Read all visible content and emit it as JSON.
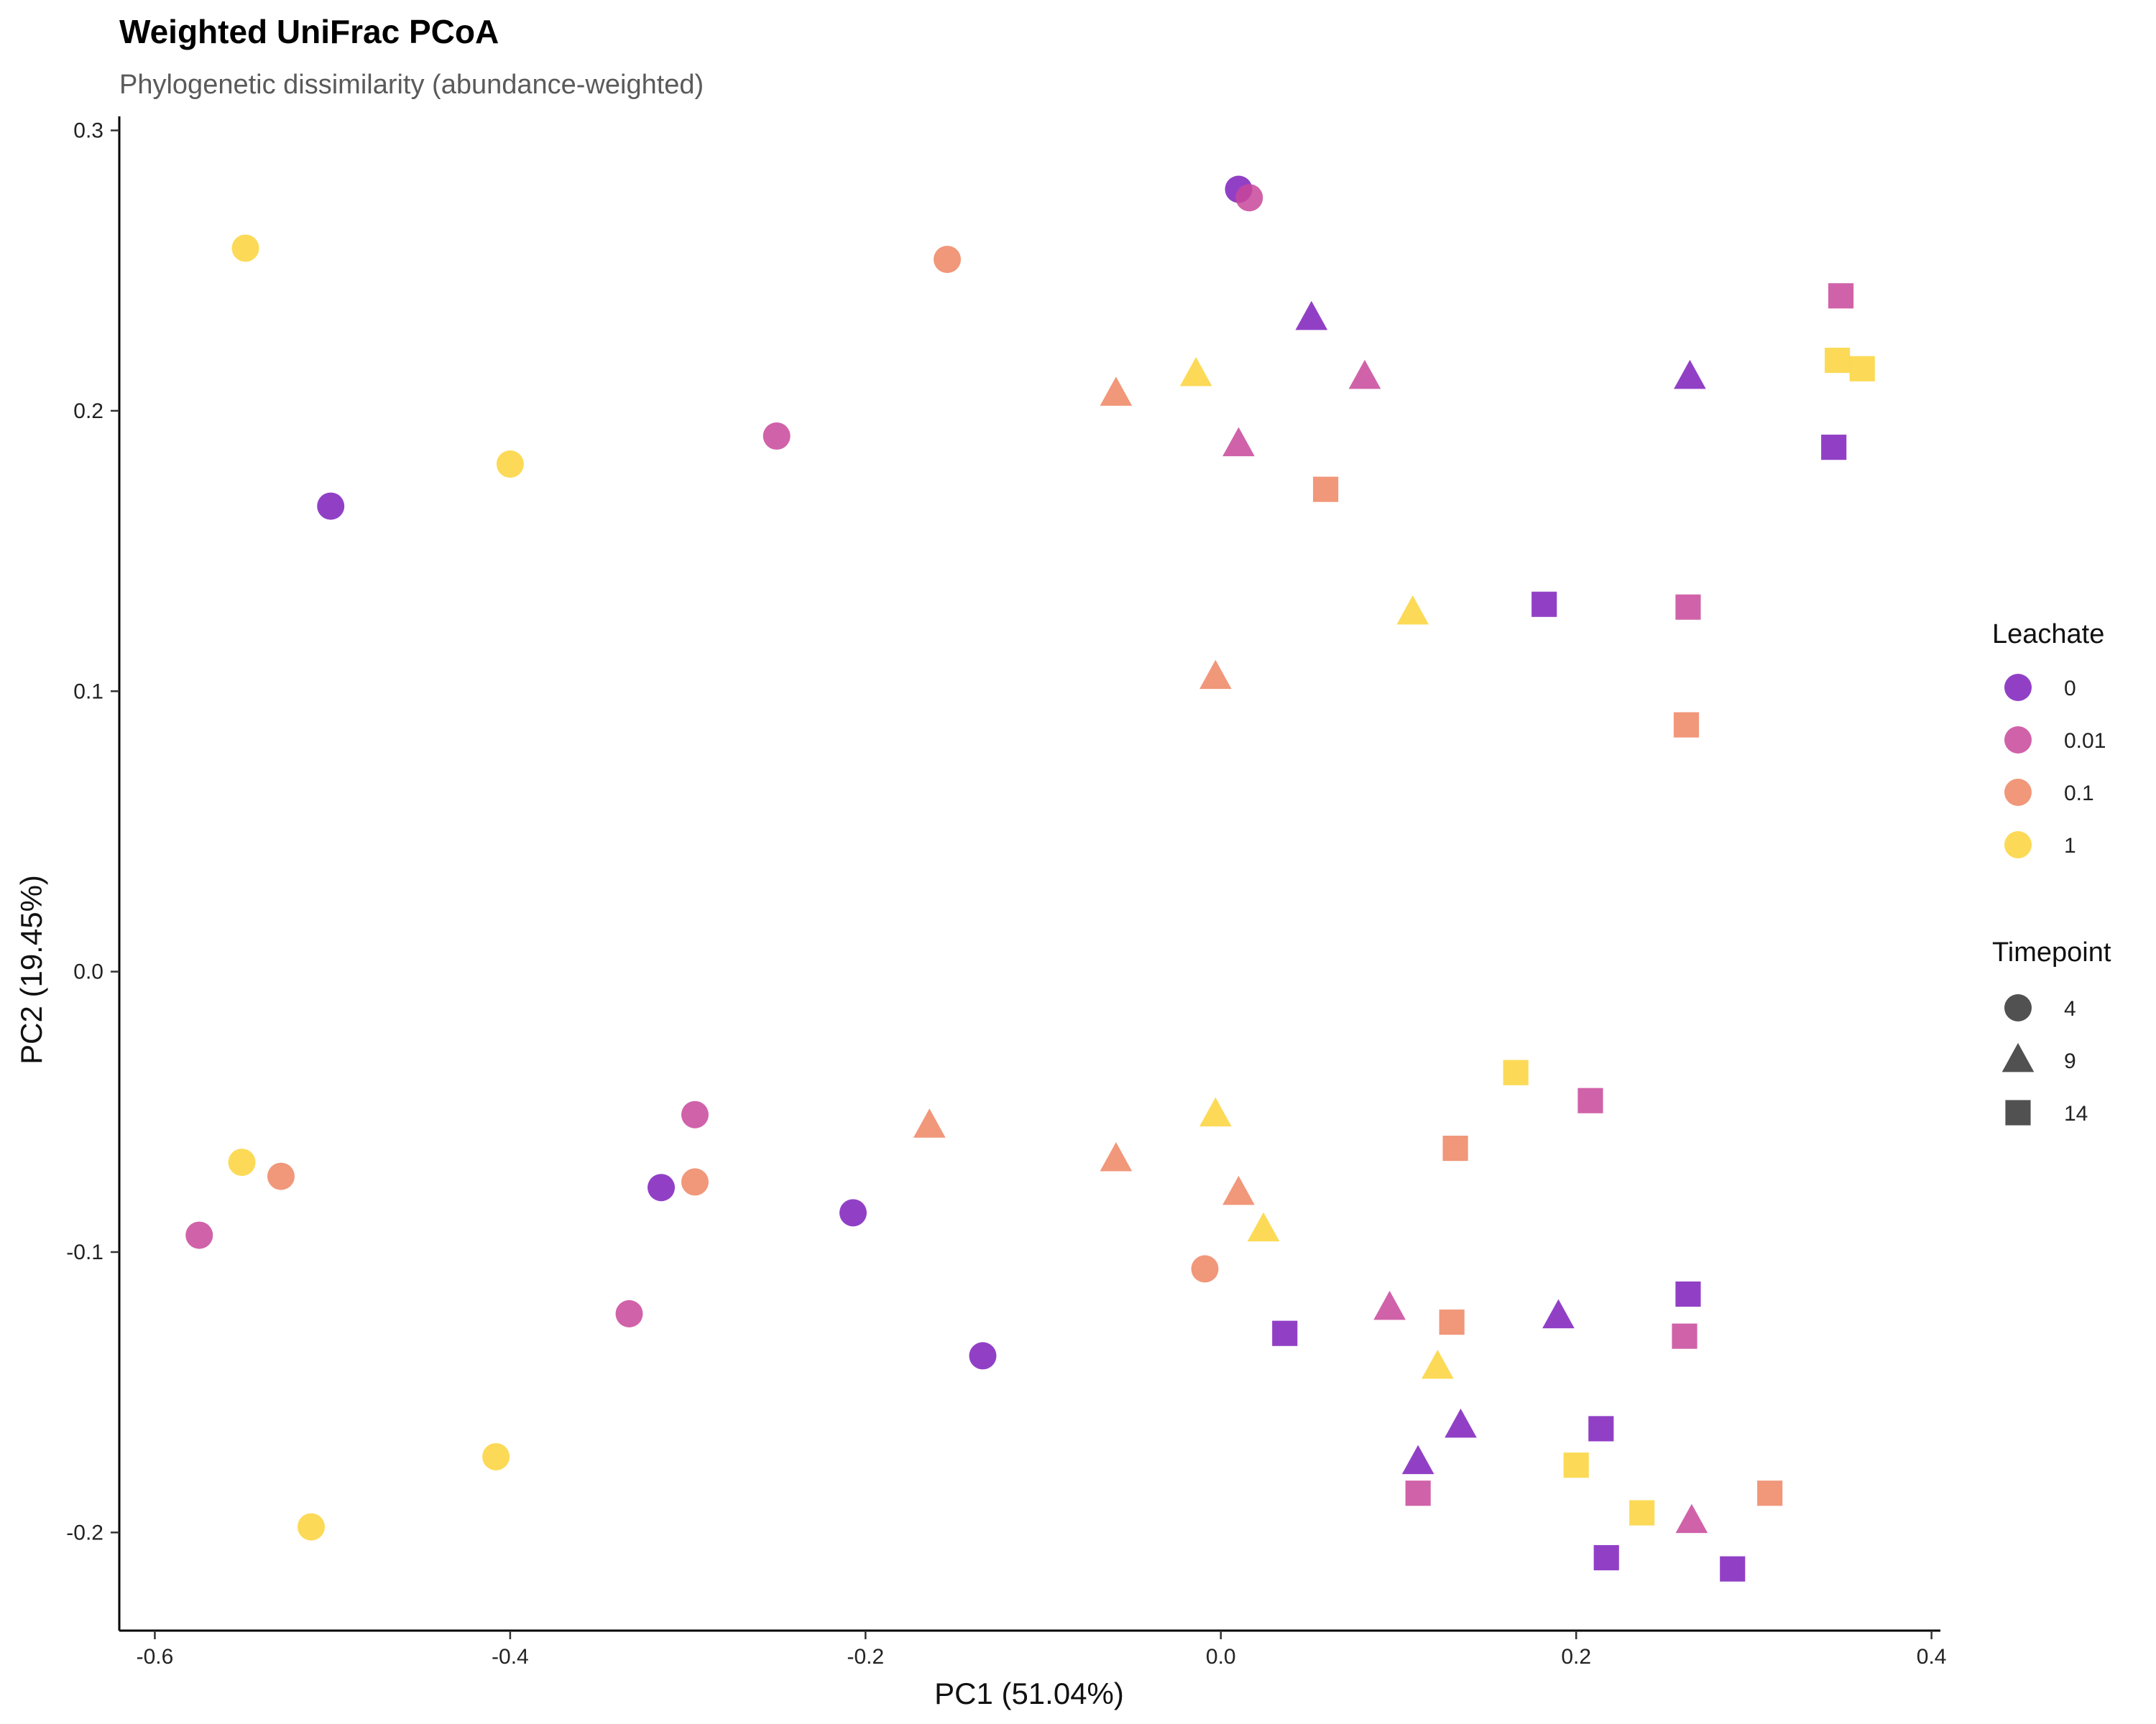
{
  "chart_data": {
    "type": "scatter",
    "title": "Weighted UniFrac PCoA",
    "subtitle": "Phylogenetic dissimilarity (abundance-weighted)",
    "xlabel": "PC1 (51.04%)",
    "ylabel": "PC2 (19.45%)",
    "xlim": [
      -0.62,
      0.405
    ],
    "ylim": [
      -0.235,
      0.305
    ],
    "xticks": [
      -0.6,
      -0.4,
      -0.2,
      0.0,
      0.2,
      0.4
    ],
    "xtick_labels": [
      "-0.6",
      "-0.4",
      "-0.2",
      "0.0",
      "0.2",
      "0.4"
    ],
    "yticks": [
      -0.2,
      -0.1,
      0.0,
      0.1,
      0.2,
      0.3
    ],
    "ytick_labels": [
      "-0.2",
      "-0.1",
      "0.0",
      "0.1",
      "0.2",
      "0.3"
    ],
    "grid": false,
    "legend_position": "right",
    "color_legend": {
      "title": "Leachate",
      "entries": [
        {
          "label": "0",
          "color": "#7E1FBC"
        },
        {
          "label": "0.01",
          "color": "#C8479A"
        },
        {
          "label": "0.1",
          "color": "#EE8563"
        },
        {
          "label": "1",
          "color": "#FCD43A"
        }
      ]
    },
    "shape_legend": {
      "title": "Timepoint",
      "entries": [
        {
          "label": "4",
          "shape": "circle"
        },
        {
          "label": "9",
          "shape": "triangle"
        },
        {
          "label": "14",
          "shape": "square"
        }
      ]
    },
    "points": [
      {
        "x": -0.549,
        "y": 0.258,
        "leachate": "1",
        "timepoint": "4"
      },
      {
        "x": -0.4,
        "y": 0.181,
        "leachate": "1",
        "timepoint": "4"
      },
      {
        "x": -0.501,
        "y": 0.166,
        "leachate": "0",
        "timepoint": "4"
      },
      {
        "x": -0.154,
        "y": 0.254,
        "leachate": "0.1",
        "timepoint": "4"
      },
      {
        "x": -0.25,
        "y": 0.191,
        "leachate": "0.01",
        "timepoint": "4"
      },
      {
        "x": 0.01,
        "y": 0.279,
        "leachate": "0",
        "timepoint": "4"
      },
      {
        "x": 0.016,
        "y": 0.276,
        "leachate": "0.01",
        "timepoint": "4"
      },
      {
        "x": -0.551,
        "y": -0.068,
        "leachate": "1",
        "timepoint": "4"
      },
      {
        "x": -0.529,
        "y": -0.073,
        "leachate": "0.1",
        "timepoint": "4"
      },
      {
        "x": -0.575,
        "y": -0.094,
        "leachate": "0.01",
        "timepoint": "4"
      },
      {
        "x": -0.315,
        "y": -0.077,
        "leachate": "0",
        "timepoint": "4"
      },
      {
        "x": -0.296,
        "y": -0.075,
        "leachate": "0.1",
        "timepoint": "4"
      },
      {
        "x": -0.296,
        "y": -0.051,
        "leachate": "0.01",
        "timepoint": "4"
      },
      {
        "x": -0.207,
        "y": -0.086,
        "leachate": "0",
        "timepoint": "4"
      },
      {
        "x": -0.333,
        "y": -0.122,
        "leachate": "0.01",
        "timepoint": "4"
      },
      {
        "x": -0.134,
        "y": -0.137,
        "leachate": "0",
        "timepoint": "4"
      },
      {
        "x": -0.009,
        "y": -0.106,
        "leachate": "0.1",
        "timepoint": "4"
      },
      {
        "x": -0.408,
        "y": -0.173,
        "leachate": "1",
        "timepoint": "4"
      },
      {
        "x": -0.512,
        "y": -0.198,
        "leachate": "1",
        "timepoint": "4"
      },
      {
        "x": 0.051,
        "y": 0.233,
        "leachate": "0",
        "timepoint": "9"
      },
      {
        "x": 0.081,
        "y": 0.212,
        "leachate": "0.01",
        "timepoint": "9"
      },
      {
        "x": -0.059,
        "y": 0.206,
        "leachate": "0.1",
        "timepoint": "9"
      },
      {
        "x": -0.014,
        "y": 0.213,
        "leachate": "1",
        "timepoint": "9"
      },
      {
        "x": 0.01,
        "y": 0.188,
        "leachate": "0.01",
        "timepoint": "9"
      },
      {
        "x": 0.264,
        "y": 0.212,
        "leachate": "0",
        "timepoint": "9"
      },
      {
        "x": 0.108,
        "y": 0.128,
        "leachate": "1",
        "timepoint": "9"
      },
      {
        "x": -0.003,
        "y": 0.105,
        "leachate": "0.1",
        "timepoint": "9"
      },
      {
        "x": -0.164,
        "y": -0.055,
        "leachate": "0.1",
        "timepoint": "9"
      },
      {
        "x": -0.059,
        "y": -0.067,
        "leachate": "0.1",
        "timepoint": "9"
      },
      {
        "x": -0.003,
        "y": -0.051,
        "leachate": "1",
        "timepoint": "9"
      },
      {
        "x": 0.01,
        "y": -0.079,
        "leachate": "0.1",
        "timepoint": "9"
      },
      {
        "x": 0.024,
        "y": -0.092,
        "leachate": "1",
        "timepoint": "9"
      },
      {
        "x": 0.095,
        "y": -0.12,
        "leachate": "0.01",
        "timepoint": "9"
      },
      {
        "x": 0.19,
        "y": -0.123,
        "leachate": "0",
        "timepoint": "9"
      },
      {
        "x": 0.122,
        "y": -0.141,
        "leachate": "1",
        "timepoint": "9"
      },
      {
        "x": 0.135,
        "y": -0.162,
        "leachate": "0",
        "timepoint": "9"
      },
      {
        "x": 0.111,
        "y": -0.175,
        "leachate": "0",
        "timepoint": "9"
      },
      {
        "x": 0.265,
        "y": -0.196,
        "leachate": "0.01",
        "timepoint": "9"
      },
      {
        "x": 0.349,
        "y": 0.241,
        "leachate": "0.01",
        "timepoint": "14"
      },
      {
        "x": 0.347,
        "y": 0.218,
        "leachate": "1",
        "timepoint": "14"
      },
      {
        "x": 0.361,
        "y": 0.215,
        "leachate": "1",
        "timepoint": "14"
      },
      {
        "x": 0.345,
        "y": 0.187,
        "leachate": "0",
        "timepoint": "14"
      },
      {
        "x": 0.059,
        "y": 0.172,
        "leachate": "0.1",
        "timepoint": "14"
      },
      {
        "x": 0.182,
        "y": 0.131,
        "leachate": "0",
        "timepoint": "14"
      },
      {
        "x": 0.263,
        "y": 0.13,
        "leachate": "0.01",
        "timepoint": "14"
      },
      {
        "x": 0.262,
        "y": 0.088,
        "leachate": "0.1",
        "timepoint": "14"
      },
      {
        "x": 0.166,
        "y": -0.036,
        "leachate": "1",
        "timepoint": "14"
      },
      {
        "x": 0.208,
        "y": -0.046,
        "leachate": "0.01",
        "timepoint": "14"
      },
      {
        "x": 0.132,
        "y": -0.063,
        "leachate": "0.1",
        "timepoint": "14"
      },
      {
        "x": 0.036,
        "y": -0.129,
        "leachate": "0",
        "timepoint": "14"
      },
      {
        "x": 0.13,
        "y": -0.125,
        "leachate": "0.1",
        "timepoint": "14"
      },
      {
        "x": 0.263,
        "y": -0.115,
        "leachate": "0",
        "timepoint": "14"
      },
      {
        "x": 0.261,
        "y": -0.13,
        "leachate": "0.01",
        "timepoint": "14"
      },
      {
        "x": 0.214,
        "y": -0.163,
        "leachate": "0",
        "timepoint": "14"
      },
      {
        "x": 0.2,
        "y": -0.176,
        "leachate": "1",
        "timepoint": "14"
      },
      {
        "x": 0.111,
        "y": -0.186,
        "leachate": "0.01",
        "timepoint": "14"
      },
      {
        "x": 0.237,
        "y": -0.193,
        "leachate": "1",
        "timepoint": "14"
      },
      {
        "x": 0.309,
        "y": -0.186,
        "leachate": "0.1",
        "timepoint": "14"
      },
      {
        "x": 0.217,
        "y": -0.209,
        "leachate": "0",
        "timepoint": "14"
      },
      {
        "x": 0.288,
        "y": -0.213,
        "leachate": "0",
        "timepoint": "14"
      }
    ]
  }
}
